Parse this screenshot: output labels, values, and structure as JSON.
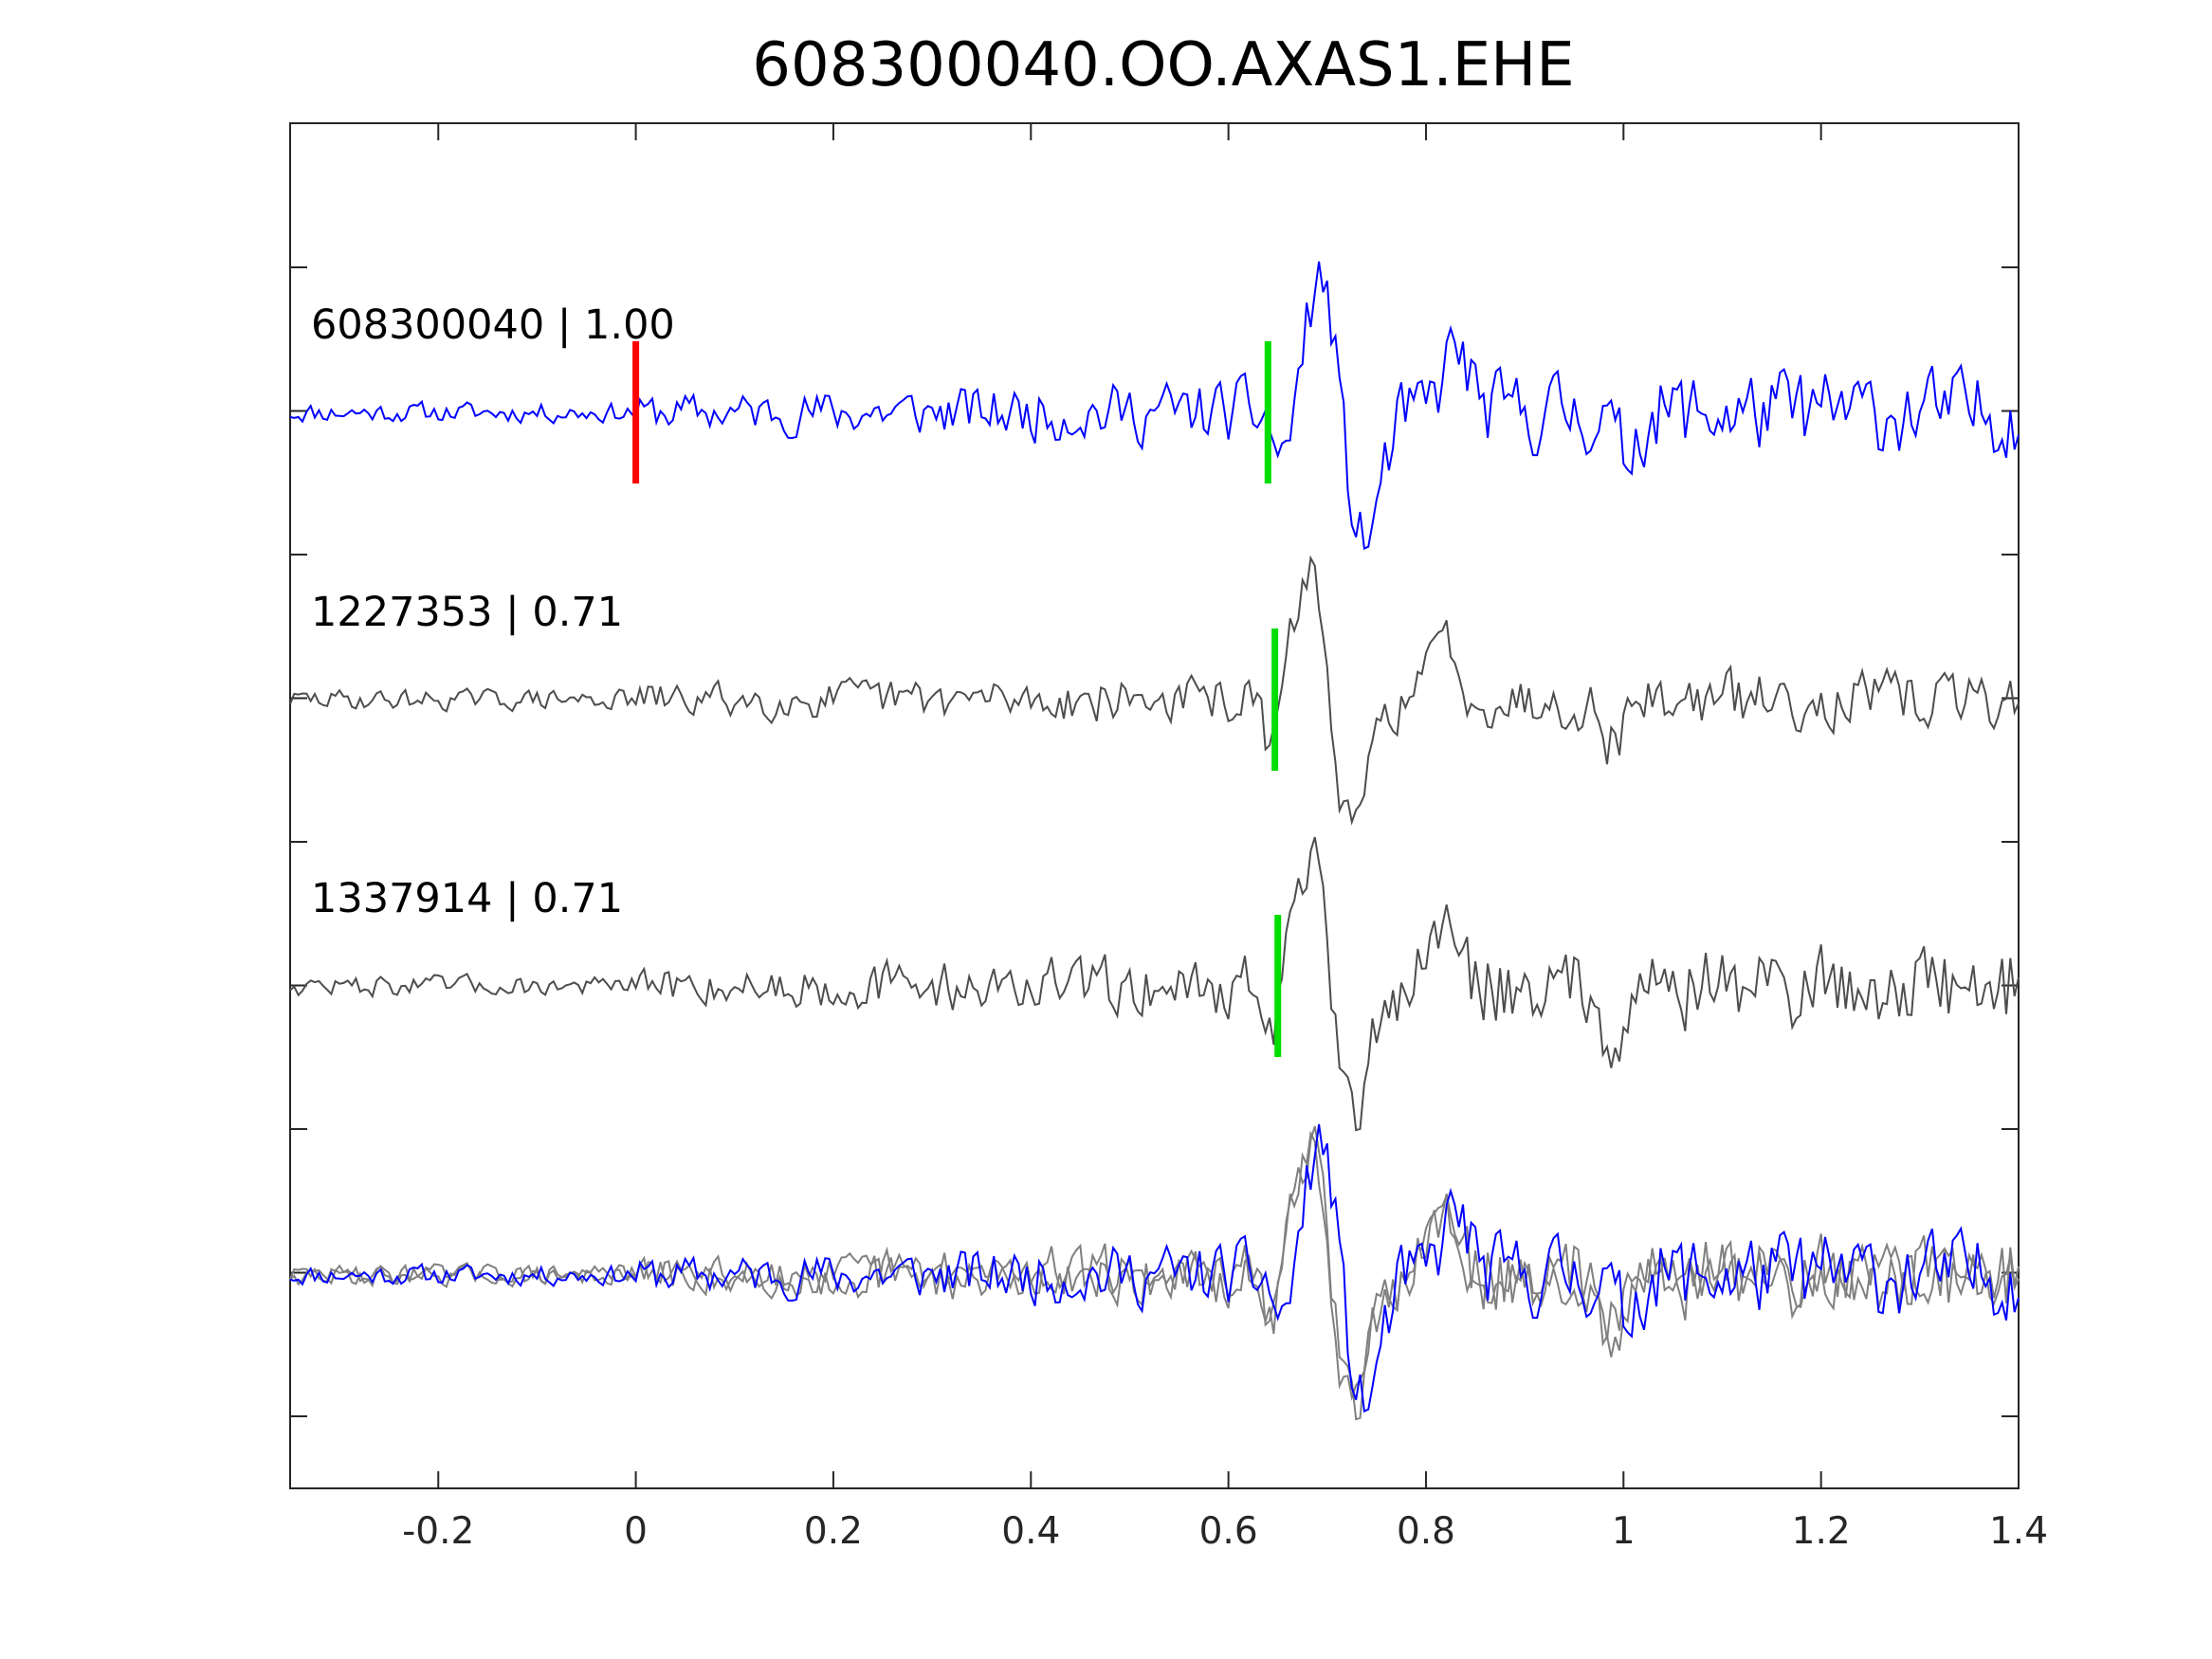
{
  "chart_data": {
    "type": "line",
    "title": "608300040.OO.AXAS1.EHE",
    "xlabel": "",
    "ylabel": "",
    "xlim": [
      -0.35,
      1.4
    ],
    "xticks": [
      -0.2,
      0,
      0.2,
      0.4,
      0.6,
      0.8,
      1,
      1.2,
      1.4
    ],
    "xtick_labels": [
      "-0.2",
      "0",
      "0.2",
      "0.4",
      "0.6",
      "0.8",
      "1",
      "1.2",
      "1.4"
    ],
    "yticks_count": 9,
    "ytick_labels": [],
    "grid": false,
    "legend": "none",
    "colors": {
      "target_trace": "#0000ff",
      "template_trace": "#4d4d4d",
      "overlay_template": "#808080",
      "origin_marker": "#ff0000",
      "pick_marker": "#00dd00",
      "axes": "#262626"
    },
    "traces": [
      {
        "label": "608300040 | 1.00",
        "id": "608300040",
        "cc": "1.00",
        "color": "#0000ff",
        "pick_time": 0.64,
        "origin_marker_time": 0.0
      },
      {
        "label": "1227353 | 0.71",
        "id": "1227353",
        "cc": "0.71",
        "color": "#4d4d4d",
        "pick_time": 0.647
      },
      {
        "label": "1337914 | 0.71",
        "id": "1337914",
        "cc": "0.71",
        "color": "#4d4d4d",
        "pick_time": 0.65
      }
    ],
    "overlay": {
      "description_visible": false,
      "members": [
        "608300040",
        "1227353",
        "1337914"
      ]
    },
    "waveform_shape": {
      "arrival_time": 0.69,
      "peak_time": 0.695,
      "trough_time": 0.735,
      "secondary_peak_time": 0.83,
      "noise_level": 0.18
    }
  }
}
